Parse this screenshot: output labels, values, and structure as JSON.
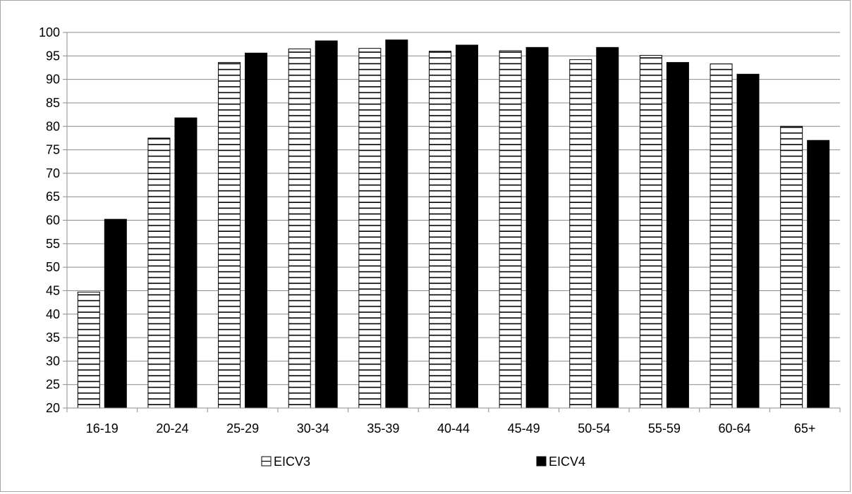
{
  "chart_data": {
    "type": "bar",
    "title": "",
    "xlabel": "",
    "ylabel": "",
    "ylim": [
      20,
      100
    ],
    "yticks": [
      20,
      25,
      30,
      35,
      40,
      45,
      50,
      55,
      60,
      65,
      70,
      75,
      80,
      85,
      90,
      95,
      100
    ],
    "grid": true,
    "legend_position": "bottom",
    "categories": [
      "16-19",
      "20-24",
      "25-29",
      "30-34",
      "35-39",
      "40-44",
      "45-49",
      "50-54",
      "55-59",
      "60-64",
      "65+"
    ],
    "series": [
      {
        "name": "EICV3",
        "pattern": "horizontal-stripes",
        "color": "#ffffff",
        "values": [
          44.7,
          77.5,
          93.6,
          96.5,
          96.6,
          96.0,
          96.1,
          94.2,
          95.1,
          93.3,
          80.0
        ]
      },
      {
        "name": "EICV4",
        "pattern": "solid",
        "color": "#000000",
        "values": [
          60.2,
          81.8,
          95.6,
          98.2,
          98.4,
          97.3,
          96.8,
          96.8,
          93.6,
          91.1,
          77.0
        ]
      }
    ]
  }
}
